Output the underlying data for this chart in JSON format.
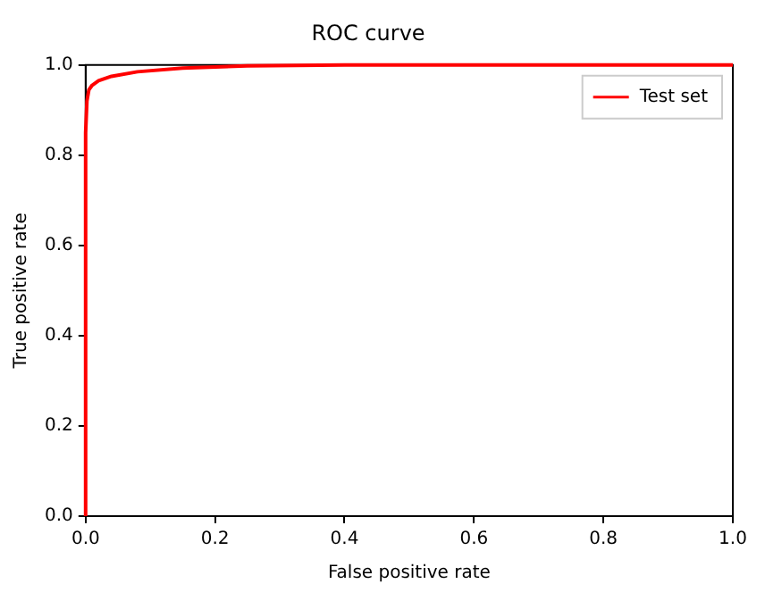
{
  "chart_data": {
    "type": "line",
    "title": "ROC curve",
    "xlabel": "False positive rate",
    "ylabel": "True positive rate",
    "xlim": [
      0,
      1
    ],
    "ylim": [
      0,
      1
    ],
    "xticks": [
      {
        "value": 0,
        "label": "0.0"
      },
      {
        "value": 0.2,
        "label": "0.2"
      },
      {
        "value": 0.4,
        "label": "0.4"
      },
      {
        "value": 0.6,
        "label": "0.6"
      },
      {
        "value": 0.8,
        "label": "0.8"
      },
      {
        "value": 1,
        "label": "1.0"
      }
    ],
    "yticks": [
      {
        "value": 0,
        "label": "0.0"
      },
      {
        "value": 0.2,
        "label": "0.2"
      },
      {
        "value": 0.4,
        "label": "0.4"
      },
      {
        "value": 0.6,
        "label": "0.6"
      },
      {
        "value": 0.8,
        "label": "0.8"
      },
      {
        "value": 1,
        "label": "1.0"
      }
    ],
    "legend": "top right",
    "grid": false,
    "marker": "none",
    "series": [
      {
        "name": "Test set",
        "color": "#ff0000",
        "x": [
          0,
          0,
          0.002,
          0.005,
          0.01,
          0.02,
          0.04,
          0.08,
          0.15,
          0.25,
          0.4,
          1
        ],
        "values": [
          0,
          0.85,
          0.92,
          0.945,
          0.955,
          0.965,
          0.975,
          0.985,
          0.993,
          0.998,
          1,
          1
        ]
      }
    ]
  }
}
